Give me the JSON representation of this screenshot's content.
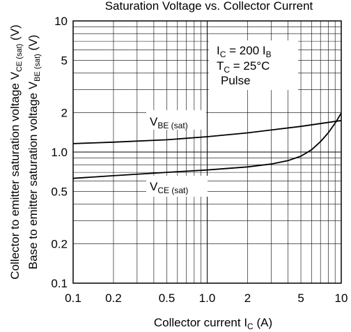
{
  "chart_data": {
    "type": "line",
    "title": "Saturation Voltage vs. Collector Current",
    "x_scale": "log",
    "y_scale": "log",
    "xlim": [
      0.1,
      10
    ],
    "ylim": [
      0.1,
      10
    ],
    "grid": true,
    "xlabel": {
      "main": "Collector current",
      "symbol": "I",
      "subscript": "C",
      "unit": "(A)"
    },
    "ylabel_outer": {
      "text": "Collector to emitter saturation voltage",
      "symbol": "V",
      "subscript": "CE (sat)",
      "unit": "(V)"
    },
    "ylabel_inner": {
      "text": "Base to emitter saturation voltage",
      "symbol": "V",
      "subscript": "BE (sat)",
      "unit": "(V)"
    },
    "x_ticks": [
      {
        "value": 0.1,
        "label": "0.1"
      },
      {
        "value": 0.2,
        "label": "0.2"
      },
      {
        "value": 0.5,
        "label": "0.5"
      },
      {
        "value": 1,
        "label": "1.0"
      },
      {
        "value": 2,
        "label": "2"
      },
      {
        "value": 5,
        "label": "5"
      },
      {
        "value": 10,
        "label": "10"
      }
    ],
    "y_ticks": [
      {
        "value": 0.1,
        "label": "0.1"
      },
      {
        "value": 0.2,
        "label": "0.2"
      },
      {
        "value": 0.5,
        "label": "0.5"
      },
      {
        "value": 1,
        "label": "1.0"
      },
      {
        "value": 2,
        "label": "2"
      },
      {
        "value": 5,
        "label": "5"
      },
      {
        "value": 10,
        "label": "10"
      }
    ],
    "conditions": [
      {
        "symbol": "I",
        "subscript": "C",
        "text": " = 200 I",
        "tail_subscript": "B"
      },
      {
        "symbol": "T",
        "subscript": "C",
        "text": " = 25°C",
        "tail_subscript": ""
      },
      {
        "symbol": "",
        "subscript": "",
        "text": "Pulse",
        "tail_subscript": ""
      }
    ],
    "series": [
      {
        "name": "VBE(sat)",
        "label_symbol": "V",
        "label_subscript": "BE (sat)",
        "x": [
          0.1,
          0.2,
          0.5,
          1,
          2,
          5,
          10
        ],
        "y": [
          1.16,
          1.19,
          1.24,
          1.31,
          1.4,
          1.57,
          1.74
        ]
      },
      {
        "name": "VCE(sat)",
        "label_symbol": "V",
        "label_subscript": "CE (sat)",
        "x": [
          0.1,
          0.2,
          0.5,
          1,
          2,
          3,
          4,
          5,
          6,
          7,
          8,
          9,
          10
        ],
        "y": [
          0.63,
          0.66,
          0.7,
          0.73,
          0.77,
          0.81,
          0.86,
          0.93,
          1.04,
          1.2,
          1.4,
          1.66,
          1.98
        ]
      }
    ]
  }
}
